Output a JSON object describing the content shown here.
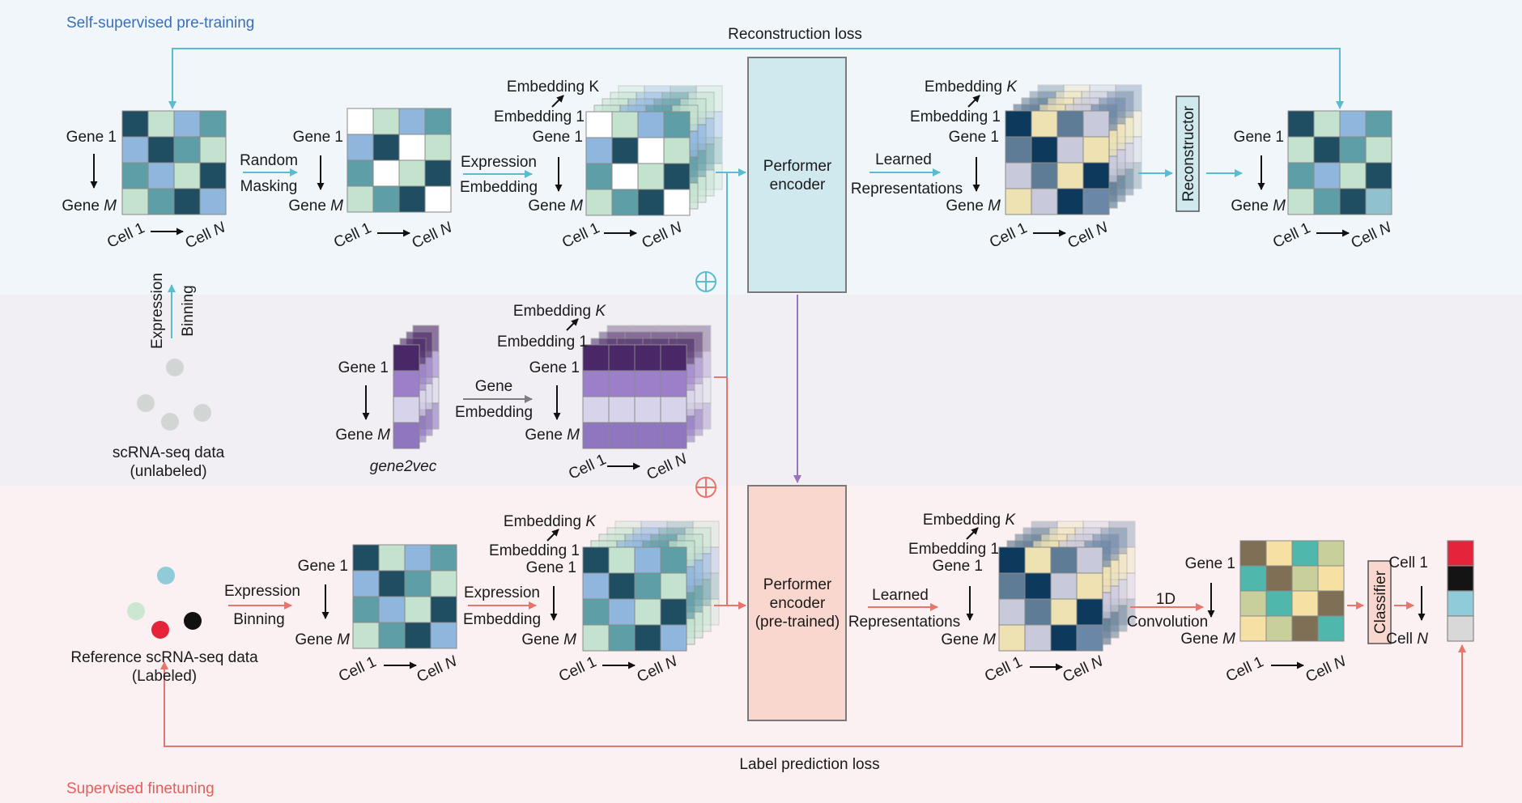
{
  "sections": {
    "pretraining": {
      "title": "Self-supervised pre-training",
      "color": "#3d6fb6"
    },
    "finetuning": {
      "title": "Supervised finetuning",
      "color": "#e0605a"
    }
  },
  "colors": {
    "band_top": "#f0f6fa",
    "band_mid": "#f1eff3",
    "band_bot": "#fbf0f2",
    "cyan": "#5bbcd0",
    "salmon": "#e8756b",
    "purple": "#9b72bd",
    "grey_arrow": "#7d7d7d"
  },
  "labels": {
    "reconstruction_loss": "Reconstruction loss",
    "label_prediction_loss": "Label prediction loss",
    "gene_1": "Gene 1",
    "gene_prefix": "Gene ",
    "m": "M",
    "cell_1": "Cell 1",
    "cell_prefix": "Cell ",
    "n": "N",
    "random": "Random",
    "masking": "Masking",
    "expression": "Expression",
    "embedding": "Embedding",
    "embedding_k_prefix": "Embedding ",
    "k": "K",
    "embedding_1": "Embedding 1",
    "learned": "Learned",
    "representations": "Representations",
    "performer_encoder": [
      "Performer",
      "encoder"
    ],
    "performer_pretrained": [
      "Performer",
      "encoder",
      "(pre-trained)"
    ],
    "reconstructor": "Reconstructor",
    "classifier": "Classifier",
    "gene": "Gene",
    "gene2vec": "gene2vec",
    "binning": "Binning",
    "scrna_unlabeled": [
      "scRNA-seq data",
      "(unlabeled)"
    ],
    "scrna_labeled": [
      "Reference scRNA-seq data",
      "(Labeled)"
    ],
    "binning_exp": "Binning",
    "one_d": "1D",
    "convolution": "Convolution"
  }
}
